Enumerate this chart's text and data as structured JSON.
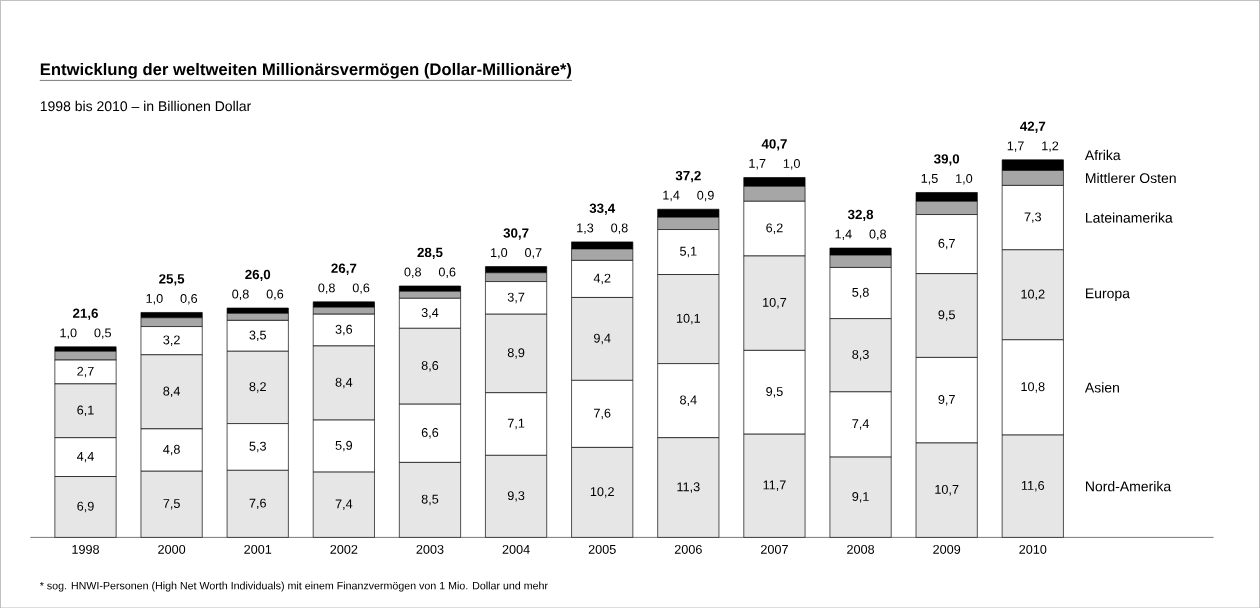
{
  "chart_data": {
    "type": "bar",
    "stacked": true,
    "title": "Entwicklung der weltweiten Millionärsvermögen (Dollar-Millionäre*)",
    "subtitle": "1998 bis 2010 – in Billionen Dollar",
    "categories": [
      "1998",
      "2000",
      "2001",
      "2002",
      "2003",
      "2004",
      "2005",
      "2006",
      "2007",
      "2008",
      "2009",
      "2010"
    ],
    "series": [
      {
        "name": "Nord-Amerika",
        "color": "#e6e6e6",
        "values": [
          6.9,
          7.5,
          7.6,
          7.4,
          8.5,
          9.3,
          10.2,
          11.3,
          11.7,
          9.1,
          10.7,
          11.6
        ],
        "value_labels": [
          "6,9",
          "7,5",
          "7,6",
          "7,4",
          "8,5",
          "9,3",
          "10,2",
          "11,3",
          "11,7",
          "9,1",
          "10,7",
          "11,6"
        ]
      },
      {
        "name": "Asien",
        "color": "#ffffff",
        "values": [
          4.4,
          4.8,
          5.3,
          5.9,
          6.6,
          7.1,
          7.6,
          8.4,
          9.5,
          7.4,
          9.7,
          10.8
        ],
        "value_labels": [
          "4,4",
          "4,8",
          "5,3",
          "5,9",
          "6,6",
          "7,1",
          "7,6",
          "8,4",
          "9,5",
          "7,4",
          "9,7",
          "10,8"
        ]
      },
      {
        "name": "Europa",
        "color": "#e6e6e6",
        "values": [
          6.1,
          8.4,
          8.2,
          8.4,
          8.6,
          8.9,
          9.4,
          10.1,
          10.7,
          8.3,
          9.5,
          10.2
        ],
        "value_labels": [
          "6,1",
          "8,4",
          "8,2",
          "8,4",
          "8,6",
          "8,9",
          "9,4",
          "10,1",
          "10,7",
          "8,3",
          "9,5",
          "10,2"
        ]
      },
      {
        "name": "Lateinamerika",
        "color": "#ffffff",
        "values": [
          2.7,
          3.2,
          3.5,
          3.6,
          3.4,
          3.7,
          4.2,
          5.1,
          6.2,
          5.8,
          6.7,
          7.3
        ],
        "value_labels": [
          "2,7",
          "3,2",
          "3,5",
          "3,6",
          "3,4",
          "3,7",
          "4,2",
          "5,1",
          "6,2",
          "5,8",
          "6,7",
          "7,3"
        ]
      },
      {
        "name": "Mittlerer Osten",
        "color": "#a6a6a6",
        "values": [
          1.0,
          1.0,
          0.8,
          0.8,
          0.8,
          1.0,
          1.3,
          1.4,
          1.7,
          1.4,
          1.5,
          1.7
        ],
        "value_labels": [
          "1,0",
          "1,0",
          "0,8",
          "0,8",
          "0,8",
          "1,0",
          "1,3",
          "1,4",
          "1,7",
          "1,4",
          "1,5",
          "1,7"
        ]
      },
      {
        "name": "Afrika",
        "color": "#000000",
        "values": [
          0.5,
          0.6,
          0.6,
          0.6,
          0.6,
          0.7,
          0.8,
          0.9,
          1.0,
          0.8,
          1.0,
          1.2
        ],
        "value_labels": [
          "0,5",
          "0,6",
          "0,6",
          "0,6",
          "0,6",
          "0,7",
          "0,8",
          "0,9",
          "1,0",
          "0,8",
          "1,0",
          "1,2"
        ]
      }
    ],
    "totals": [
      "21,6",
      "25,5",
      "26,0",
      "26,7",
      "28,5",
      "30,7",
      "33,4",
      "37,2",
      "40,7",
      "32,8",
      "39,0",
      "42,7"
    ],
    "annotations": [
      "* sog. HNWI-Personen (High Net Worth Individuals) mit einem Finanzvermögen von 1 Mio. Dollar und mehr"
    ]
  }
}
